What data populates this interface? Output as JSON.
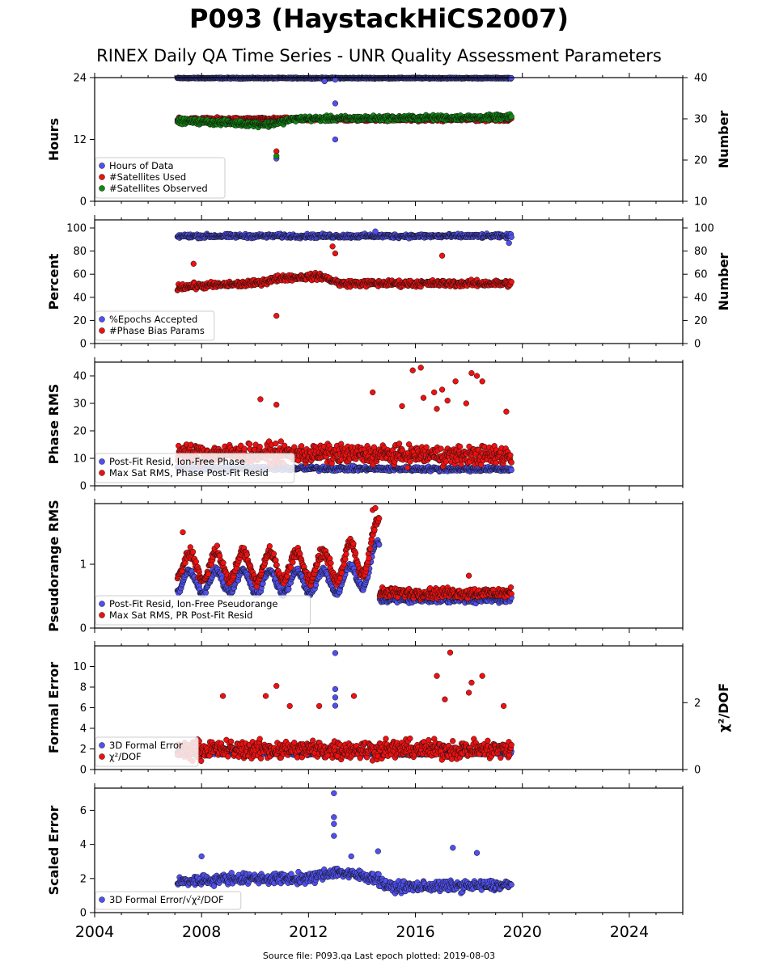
{
  "header": {
    "title": "P093 (HaystackHiCS2007)",
    "subtitle": "RINEX Daily QA Time Series - UNR Quality Assessment Parameters"
  },
  "footer": {
    "text": "Source file: P093.qa Last epoch plotted: 2019-08-03"
  },
  "colors": {
    "blue": "#5050f0",
    "red": "#ee1111",
    "green": "#118811",
    "edge": "#111111"
  },
  "chart_data": [
    {
      "type": "scatter",
      "ylabel": "Hours",
      "ylim": [
        0,
        24
      ],
      "yticks": [
        "0",
        "12",
        "24"
      ],
      "y2label": "Number",
      "y2lim": [
        10,
        40
      ],
      "y2ticks": [
        "10",
        "20",
        "30",
        "40"
      ],
      "xlim": [
        2004,
        2026
      ],
      "xticks": [
        "2004",
        "2008",
        "2012",
        "2016",
        "2020",
        "2024"
      ],
      "data_range": [
        2007.1,
        2019.59
      ],
      "legend": {
        "position": "lower-left",
        "entries": [
          "Hours of Data",
          "#Satellites Used",
          "#Satellites Observed"
        ]
      },
      "series": [
        {
          "name": "Hours of Data",
          "color": "blue",
          "axis": "left",
          "trend": [
            [
              2007.1,
              23.9
            ],
            [
              2019.59,
              23.9
            ]
          ],
          "spread": 0.15,
          "outliers": [
            [
              2010.8,
              8.3
            ],
            [
              2012.6,
              23.3
            ],
            [
              2013.0,
              19.0
            ],
            [
              2013.0,
              12.0
            ],
            [
              2013.0,
              23.6
            ]
          ]
        },
        {
          "name": "#Satellites Used",
          "color": "red",
          "axis": "left",
          "trend": [
            [
              2007.1,
              15.9
            ],
            [
              2019.59,
              15.9
            ]
          ],
          "spread": 0.5,
          "outliers": [
            [
              2010.8,
              9.7
            ],
            [
              2009.3,
              16.0
            ]
          ]
        },
        {
          "name": "#Satellites Observed",
          "color": "green",
          "axis": "right",
          "trend": [
            [
              2007.1,
              29.5
            ],
            [
              2009.0,
              29.0
            ],
            [
              2010.5,
              28.6
            ],
            [
              2011.5,
              30.0
            ],
            [
              2019.59,
              30.4
            ]
          ],
          "spread": 0.9,
          "outliers": [
            [
              2010.8,
              21.0
            ]
          ]
        }
      ]
    },
    {
      "type": "scatter",
      "ylabel": "Percent",
      "ylim": [
        0,
        107
      ],
      "yticks": [
        "0",
        "20",
        "40",
        "60",
        "80",
        "100"
      ],
      "y2label": "Number",
      "y2lim": [
        0,
        107
      ],
      "y2ticks": [
        "0",
        "20",
        "40",
        "60",
        "80",
        "100"
      ],
      "xlim": [
        2004,
        2026
      ],
      "xticks": [
        "2004",
        "2008",
        "2012",
        "2016",
        "2020",
        "2024"
      ],
      "data_range": [
        2007.1,
        2019.59
      ],
      "legend": {
        "position": "lower-left",
        "entries": [
          "%Epochs Accepted",
          "#Phase Bias Params"
        ]
      },
      "series": [
        {
          "name": "%Epochs Accepted",
          "color": "blue",
          "axis": "left",
          "trend": [
            [
              2007.1,
              93
            ],
            [
              2019.59,
              93
            ]
          ],
          "spread": 2.5,
          "outliers": [
            [
              2014.5,
              97
            ],
            [
              2019.5,
              87
            ]
          ]
        },
        {
          "name": "#Phase Bias Params",
          "color": "red",
          "axis": "right",
          "trend": [
            [
              2007.1,
              49
            ],
            [
              2010.0,
              52
            ],
            [
              2011.0,
              57
            ],
            [
              2012.5,
              58
            ],
            [
              2013.2,
              52
            ],
            [
              2019.59,
              52
            ]
          ],
          "spread": 4,
          "outliers": [
            [
              2010.8,
              24
            ],
            [
              2007.7,
              69
            ],
            [
              2012.9,
              84
            ],
            [
              2013.0,
              78
            ],
            [
              2017.0,
              76
            ]
          ]
        }
      ]
    },
    {
      "type": "scatter",
      "ylabel": "Phase RMS",
      "ylim": [
        0,
        45
      ],
      "yticks": [
        "0",
        "10",
        "20",
        "30",
        "40"
      ],
      "xlim": [
        2004,
        2026
      ],
      "xticks": [
        "2004",
        "2008",
        "2012",
        "2016",
        "2020",
        "2024"
      ],
      "data_range": [
        2007.1,
        2019.59
      ],
      "legend": {
        "position": "lower-left",
        "entries": [
          "Post-Fit Resid, Ion-Free Phase",
          "Max Sat RMS, Phase Post-Fit Resid"
        ]
      },
      "series": [
        {
          "name": "Post-Fit Resid, Ion-Free Phase",
          "color": "blue",
          "axis": "left",
          "trend": [
            [
              2007.1,
              6.5
            ],
            [
              2019.59,
              6.0
            ]
          ],
          "spread": 1.2,
          "outliers": []
        },
        {
          "name": "Max Sat RMS, Phase Post-Fit Resid",
          "color": "red",
          "axis": "left",
          "trend": [
            [
              2007.1,
              12
            ],
            [
              2019.59,
              11
            ]
          ],
          "spread": 5,
          "outliers": [
            [
              2015.9,
              42
            ],
            [
              2016.2,
              43
            ],
            [
              2017.5,
              38
            ],
            [
              2018.1,
              41
            ],
            [
              2018.3,
              40
            ],
            [
              2018.5,
              38
            ],
            [
              2016.7,
              34
            ],
            [
              2014.4,
              34
            ],
            [
              2010.2,
              31.5
            ],
            [
              2010.8,
              29.5
            ],
            [
              2017.0,
              35
            ],
            [
              2017.2,
              31
            ],
            [
              2016.3,
              32
            ],
            [
              2015.5,
              29
            ],
            [
              2017.9,
              30
            ],
            [
              2019.4,
              27
            ],
            [
              2016.8,
              28
            ]
          ]
        }
      ]
    },
    {
      "type": "scatter",
      "ylabel": "Pseudorange RMS",
      "ylim": [
        0,
        1.95
      ],
      "yticks": [
        "0",
        "1"
      ],
      "xlim": [
        2004,
        2026
      ],
      "xticks": [
        "2004",
        "2008",
        "2012",
        "2016",
        "2020",
        "2024"
      ],
      "data_range": [
        2007.1,
        2019.59
      ],
      "legend": {
        "position": "lower-left",
        "entries": [
          "Post-Fit Resid, Ion-Free Pseudorange",
          "Max Sat RMS, PR Post-Fit Resid"
        ]
      },
      "series": [
        {
          "name": "Post-Fit Resid, Ion-Free Pseudorange",
          "color": "blue",
          "axis": "left",
          "oscillating": true,
          "split": 2014.65,
          "base": 0.55,
          "amp": 0.35,
          "after": 0.45,
          "spread": 0.08,
          "outliers": []
        },
        {
          "name": "Max Sat RMS, PR Post-Fit Resid",
          "color": "red",
          "axis": "left",
          "oscillating": true,
          "split": 2014.65,
          "base": 0.75,
          "amp": 0.45,
          "after": 0.55,
          "spread": 0.12,
          "outliers": [
            [
              2014.4,
              1.85
            ],
            [
              2014.5,
              1.88
            ],
            [
              2007.3,
              1.5
            ],
            [
              2018.0,
              0.82
            ]
          ]
        }
      ]
    },
    {
      "type": "scatter",
      "ylabel": "Formal Error",
      "ylim": [
        0,
        12
      ],
      "yticks": [
        "0",
        "2",
        "4",
        "6",
        "8",
        "10"
      ],
      "y2label": "χ²/DOF",
      "y2lim": [
        0,
        3.7
      ],
      "y2ticks": [
        "0",
        "2"
      ],
      "xlim": [
        2004,
        2026
      ],
      "xticks": [
        "2004",
        "2008",
        "2012",
        "2016",
        "2020",
        "2024"
      ],
      "data_range": [
        2007.1,
        2019.59
      ],
      "legend": {
        "position": "lower-left",
        "entries": [
          "3D Formal Error",
          "χ²/DOF"
        ]
      },
      "series": [
        {
          "name": "3D Formal Error",
          "color": "blue",
          "axis": "left",
          "trend": [
            [
              2007.1,
              1.6
            ],
            [
              2019.59,
              1.6
            ]
          ],
          "spread": 0.3,
          "outliers": [
            [
              2013.0,
              11.3
            ],
            [
              2013.0,
              7.8
            ],
            [
              2013.0,
              7.0
            ],
            [
              2013.0,
              6.2
            ]
          ]
        },
        {
          "name": "χ²/DOF",
          "color": "red",
          "axis": "right",
          "trend": [
            [
              2007.1,
              0.6
            ],
            [
              2019.59,
              0.6
            ]
          ],
          "spread": 0.4,
          "outliers": [
            [
              2017.3,
              3.5
            ],
            [
              2016.8,
              2.8
            ],
            [
              2018.5,
              2.8
            ],
            [
              2018.1,
              2.6
            ],
            [
              2018.0,
              2.3
            ],
            [
              2008.8,
              2.2
            ],
            [
              2010.8,
              2.5
            ],
            [
              2011.3,
              1.9
            ],
            [
              2013.7,
              2.2
            ],
            [
              2010.4,
              2.2
            ],
            [
              2012.4,
              1.9
            ],
            [
              2017.1,
              2.1
            ],
            [
              2019.3,
              1.9
            ]
          ]
        }
      ]
    },
    {
      "type": "scatter",
      "ylabel": "Scaled Error",
      "ylim": [
        0,
        7.3
      ],
      "yticks": [
        "0",
        "2",
        "4",
        "6"
      ],
      "xlim": [
        2004,
        2026
      ],
      "xticks": [
        "2004",
        "2008",
        "2012",
        "2016",
        "2020",
        "2024"
      ],
      "data_range": [
        2007.1,
        2019.59
      ],
      "legend": {
        "position": "lower-left",
        "entries": [
          "3D Formal Error/√χ²/DOF"
        ]
      },
      "series": [
        {
          "name": "3D Formal Error/√χ²/DOF",
          "color": "blue",
          "axis": "left",
          "trend": [
            [
              2007.1,
              1.8
            ],
            [
              2009.0,
              2.0
            ],
            [
              2012.0,
              2.0
            ],
            [
              2013.0,
              2.4
            ],
            [
              2014.6,
              2.0
            ],
            [
              2015.0,
              1.5
            ],
            [
              2019.59,
              1.6
            ]
          ],
          "spread": 0.45,
          "outliers": [
            [
              2012.95,
              7.0
            ],
            [
              2012.95,
              5.6
            ],
            [
              2012.95,
              5.2
            ],
            [
              2012.95,
              4.5
            ],
            [
              2017.4,
              3.8
            ],
            [
              2014.6,
              3.6
            ],
            [
              2018.3,
              3.5
            ],
            [
              2013.6,
              3.3
            ],
            [
              2008.0,
              3.3
            ]
          ]
        }
      ]
    }
  ]
}
